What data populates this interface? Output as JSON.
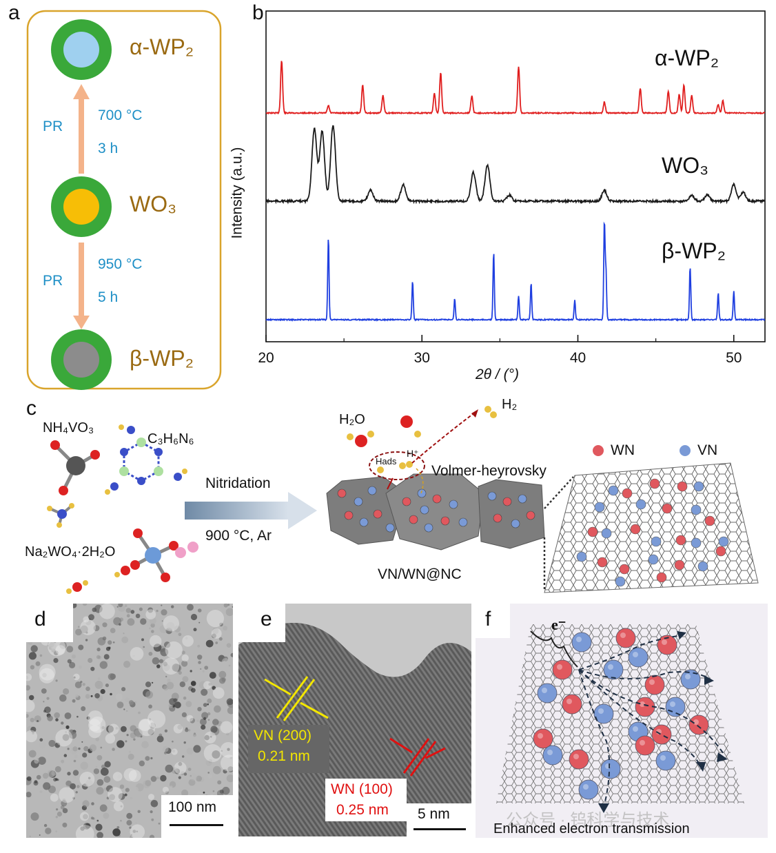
{
  "panels": {
    "a": {
      "letter": "a",
      "top_label": "α-WP₂",
      "middle_label": "WO₃",
      "bottom_label": "β-WP₂",
      "upper_step": {
        "method": "PR",
        "temperature": "700 °C",
        "time": "3 h"
      },
      "lower_step": {
        "method": "PR",
        "temperature": "950 °C",
        "time": "5 h"
      },
      "colors": {
        "border": "#d9a42b",
        "shell": "#3aa83a",
        "alpha_core": "#9fd0ef",
        "wo3_core": "#f7be06",
        "beta_core": "#8c8c8c",
        "arrow": "#f4b38a",
        "label": "#9a6a12",
        "step_text": "#1e8fc6"
      }
    },
    "b": {
      "letter": "b",
      "xlabel": "2θ / (°)",
      "ylabel": "Intensity (a.u.)",
      "xticks": [
        "20",
        "30",
        "40",
        "50"
      ],
      "series_labels": [
        "α-WP₂",
        "WO₃",
        "β-WP₂"
      ]
    },
    "c": {
      "letter": "c",
      "precursor_1": "NH₄VO₃",
      "precursor_2": "C₃H₆N₆",
      "precursor_3": "Na₂WO₄·2H₂O",
      "step": "Nitridation",
      "condition": "900 °C, Ar",
      "h2o": "H₂O",
      "h2": "H₂",
      "hads": "Hads",
      "hplus": "H⁺",
      "mechanism": "Volmer-heyrovsky",
      "product": "VN/WN@NC",
      "legend_wn": "WN",
      "legend_vn": "VN",
      "colors": {
        "wn": "#e0585e",
        "vn": "#7a9ad6",
        "block": "#7d7d7d",
        "arrow": "#7f96ad"
      }
    },
    "d": {
      "letter": "d",
      "scale": "100 nm"
    },
    "e": {
      "letter": "e",
      "vn_label": "VN (200)",
      "vn_spacing": "0.21 nm",
      "wn_label": "WN (100)",
      "wn_spacing": "0.25 nm",
      "scale": "5 nm",
      "colors": {
        "vn": "#f3e600",
        "wn": "#e01010"
      }
    },
    "f": {
      "letter": "f",
      "electron": "e⁻",
      "caption": "Enhanced electron transmission",
      "watermark": "公众号 · 钨科学与技术"
    }
  },
  "chart_data": {
    "type": "line",
    "xlabel": "2θ / (°)",
    "ylabel": "Intensity (a.u.)",
    "xlim": [
      20,
      52
    ],
    "xticks": [
      20,
      30,
      40,
      50
    ],
    "y_ticks_shown": false,
    "series": [
      {
        "name": "α-WP₂",
        "color": "#e01e1e",
        "peaks": [
          [
            21.0,
            0.85
          ],
          [
            24.0,
            0.12
          ],
          [
            26.2,
            0.45
          ],
          [
            27.5,
            0.28
          ],
          [
            30.8,
            0.32
          ],
          [
            31.2,
            0.65
          ],
          [
            33.2,
            0.28
          ],
          [
            36.2,
            0.75
          ],
          [
            41.7,
            0.18
          ],
          [
            44.0,
            0.4
          ],
          [
            45.8,
            0.35
          ],
          [
            46.5,
            0.3
          ],
          [
            46.8,
            0.45
          ],
          [
            47.3,
            0.28
          ],
          [
            49.0,
            0.14
          ],
          [
            49.3,
            0.2
          ]
        ]
      },
      {
        "name": "WO₃",
        "color": "#1a1a1a",
        "peaks": [
          [
            23.1,
            0.95
          ],
          [
            23.6,
            0.92
          ],
          [
            24.3,
            1.0
          ],
          [
            26.7,
            0.15
          ],
          [
            28.8,
            0.22
          ],
          [
            33.3,
            0.38
          ],
          [
            34.2,
            0.48
          ],
          [
            35.6,
            0.08
          ],
          [
            41.7,
            0.14
          ],
          [
            47.3,
            0.08
          ],
          [
            48.3,
            0.08
          ],
          [
            50.0,
            0.22
          ],
          [
            50.6,
            0.12
          ]
        ]
      },
      {
        "name": "β-WP₂",
        "color": "#1f3fe0",
        "peaks": [
          [
            24.0,
            0.85
          ],
          [
            29.4,
            0.4
          ],
          [
            32.1,
            0.22
          ],
          [
            34.6,
            0.7
          ],
          [
            36.2,
            0.25
          ],
          [
            37.0,
            0.38
          ],
          [
            39.8,
            0.2
          ],
          [
            41.7,
            1.0
          ],
          [
            41.8,
            0.5
          ],
          [
            47.2,
            0.55
          ],
          [
            49.0,
            0.28
          ],
          [
            50.0,
            0.3
          ]
        ]
      }
    ]
  }
}
